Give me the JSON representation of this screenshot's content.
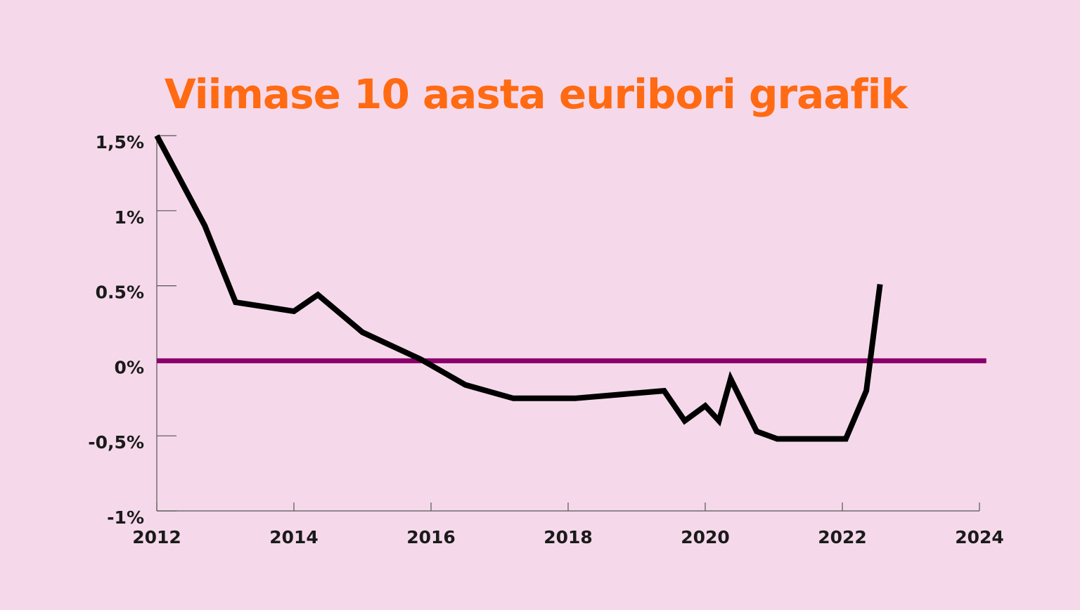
{
  "colors": {
    "background": "#f5d9ea",
    "title": "#ff6a13",
    "series": "#000000",
    "zero_line": "#8b006b",
    "axis": "#555555"
  },
  "chart_data": {
    "type": "line",
    "title": "Viimase 10 aasta euribori graafik",
    "xlabel": "",
    "ylabel": "",
    "xlim": [
      2012,
      2024
    ],
    "ylim": [
      -1,
      1.5
    ],
    "x_ticks": [
      2012,
      2014,
      2016,
      2018,
      2020,
      2022,
      2024
    ],
    "x_tick_labels": [
      "2012",
      "2014",
      "2016",
      "2018",
      "2020",
      "2022",
      "2024"
    ],
    "y_ticks": [
      1.5,
      1,
      0.5,
      0,
      -0.5,
      -1
    ],
    "y_tick_labels": [
      "1,5%",
      "1%",
      "0.5%",
      "0%",
      "-0,5%",
      "-1%"
    ],
    "grid": false,
    "reference_line": {
      "y": 0,
      "x_range": [
        2012,
        2024.1
      ]
    },
    "series": [
      {
        "x": [
          2012.0,
          2012.7,
          2013.15,
          2014.0,
          2014.35,
          2015.0,
          2015.85,
          2016.5,
          2017.2,
          2018.1,
          2019.4,
          2019.7,
          2020.0,
          2020.2,
          2020.37,
          2020.75,
          2021.05,
          2022.05,
          2022.35,
          2022.55
        ],
        "y": [
          1.5,
          0.9,
          0.39,
          0.33,
          0.44,
          0.19,
          0.01,
          -0.16,
          -0.25,
          -0.25,
          -0.2,
          -0.4,
          -0.3,
          -0.4,
          -0.12,
          -0.47,
          -0.52,
          -0.52,
          -0.2,
          0.51
        ]
      }
    ]
  }
}
